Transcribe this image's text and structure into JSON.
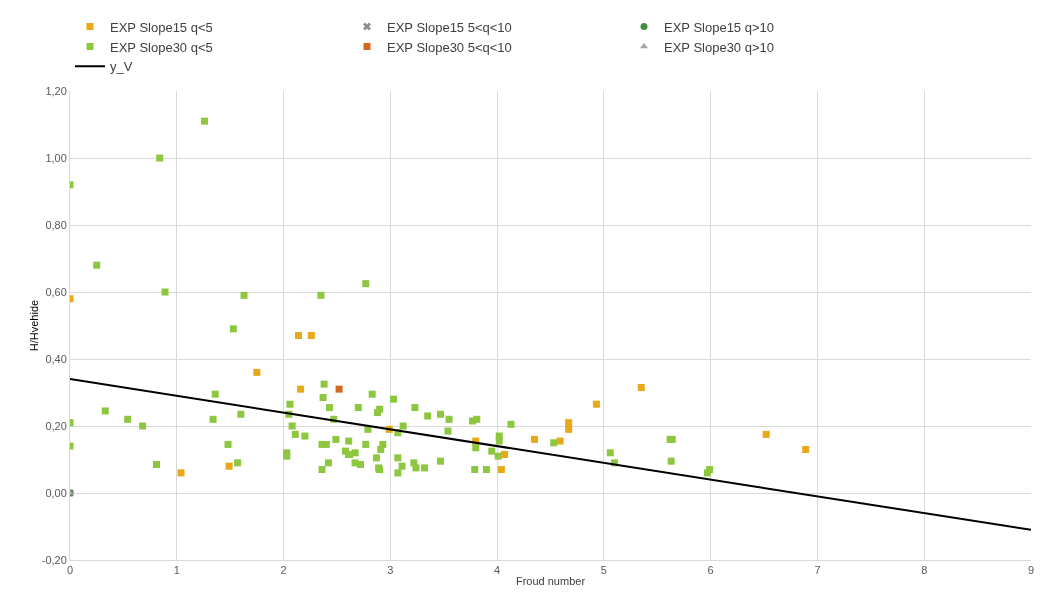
{
  "chart_data": {
    "type": "scatter",
    "xlabel": "Froud number",
    "ylabel": "H/Hvehide",
    "xlim": [
      0,
      9
    ],
    "ylim": [
      -0.2,
      1.2
    ],
    "xticks": [
      0,
      1,
      2,
      3,
      4,
      5,
      6,
      7,
      8,
      9
    ],
    "yticks": [
      {
        "value": -0.2,
        "label": "-0,20"
      },
      {
        "value": 0,
        "label": "0,00"
      },
      {
        "value": 0.2,
        "label": "0,20"
      },
      {
        "value": 0.4,
        "label": "0,40"
      },
      {
        "value": 0.6,
        "label": "0,60"
      },
      {
        "value": 0.8,
        "label": "0,80"
      },
      {
        "value": 1,
        "label": "1,00"
      },
      {
        "value": 1.2,
        "label": "1,20"
      }
    ],
    "grid": true,
    "legend": "top",
    "series": [
      {
        "name": "EXP Slope15 q<5",
        "color": "#e8a817",
        "marker": "square",
        "x": [
          0,
          2.14,
          2.26,
          1.75,
          2.16,
          1.04,
          1.49,
          2.99,
          3.8,
          4.07,
          4.04,
          4.35,
          4.59,
          4.67,
          4.67,
          4.93,
          5.35,
          6.52,
          6.89
        ],
        "values": [
          0.58,
          0.47,
          0.47,
          0.36,
          0.31,
          0.06,
          0.08,
          0.19,
          0.155,
          0.115,
          0.07,
          0.16,
          0.155,
          0.21,
          0.19,
          0.265,
          0.315,
          0.175,
          0.13
        ]
      },
      {
        "name": "EXP Slope15 5<q<10",
        "color": "#8c8c8c",
        "marker": "cross",
        "x": [
          0
        ],
        "values": [
          0
        ]
      },
      {
        "name": "EXP Slope15 q>10",
        "color": "#3f8f3f",
        "marker": "circle",
        "x": [
          0
        ],
        "values": [
          0
        ]
      },
      {
        "name": "EXP Slope30 q<5",
        "color": "#8dc63f",
        "marker": "square",
        "x": [
          0,
          0.25,
          0.84,
          1.26,
          0.89,
          1.63,
          1.53,
          2.35,
          2.77,
          0,
          0,
          0.33,
          0.54,
          0.68,
          0.81,
          1.36,
          1.34,
          1.48,
          1.57,
          1.6,
          2.03,
          2.03,
          2.06,
          2.05,
          2.08,
          2.11,
          2.2,
          2.38,
          2.37,
          2.43,
          2.47,
          2.36,
          2.4,
          2.49,
          2.42,
          2.36,
          2.58,
          2.61,
          2.61,
          2.62,
          2.67,
          2.67,
          2.72,
          2.7,
          2.77,
          2.79,
          2.83,
          2.88,
          2.9,
          2.93,
          2.91,
          2.87,
          2.89,
          2.9,
          3.03,
          3.07,
          3.12,
          3.07,
          3.07,
          3.11,
          3.23,
          3.22,
          3.24,
          3.32,
          3.35,
          3.47,
          3.55,
          3.54,
          3.47,
          3.77,
          3.81,
          3.8,
          3.79,
          3.9,
          3.95,
          4.02,
          4.02,
          4.01,
          4.13,
          4.53,
          5.06,
          5.1,
          5.62,
          5.64,
          5.63,
          5.97,
          5.99
        ],
        "values": [
          0.92,
          0.68,
          1.0,
          1.11,
          0.6,
          0.59,
          0.49,
          0.59,
          0.625,
          0.21,
          0.14,
          0.245,
          0.22,
          0.2,
          0.085,
          0.295,
          0.22,
          0.145,
          0.09,
          0.235,
          0.12,
          0.11,
          0.265,
          0.235,
          0.2,
          0.175,
          0.17,
          0.325,
          0.285,
          0.255,
          0.22,
          0.145,
          0.145,
          0.16,
          0.09,
          0.07,
          0.125,
          0.155,
          0.115,
          0.115,
          0.12,
          0.09,
          0.085,
          0.255,
          0.145,
          0.19,
          0.295,
          0.24,
          0.25,
          0.145,
          0.13,
          0.105,
          0.075,
          0.07,
          0.28,
          0.18,
          0.2,
          0.105,
          0.06,
          0.08,
          0.255,
          0.09,
          0.075,
          0.075,
          0.23,
          0.235,
          0.22,
          0.185,
          0.095,
          0.215,
          0.22,
          0.135,
          0.07,
          0.07,
          0.125,
          0.17,
          0.155,
          0.11,
          0.205,
          0.15,
          0.12,
          0.09,
          0.16,
          0.16,
          0.095,
          0.06,
          0.07
        ]
      },
      {
        "name": "EXP Slope30 5<q<10",
        "color": "#d2691e",
        "marker": "square",
        "x": [
          2.52
        ],
        "values": [
          0.31
        ]
      },
      {
        "name": "EXP Slope30 q>10",
        "color": "#a5a5a5",
        "marker": "triangle",
        "x": [
          0
        ],
        "values": [
          0
        ]
      },
      {
        "name": "y_V",
        "type": "line",
        "color": "#000000",
        "marker": "none",
        "x": [
          0,
          9
        ],
        "values": [
          0.34,
          -0.11
        ]
      }
    ]
  }
}
